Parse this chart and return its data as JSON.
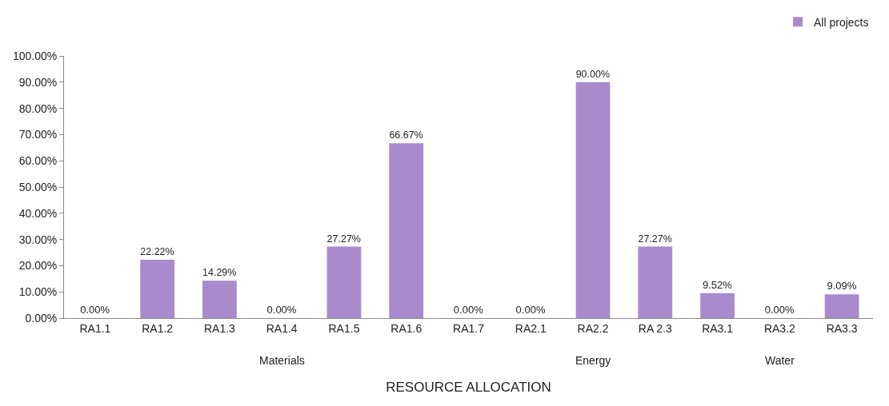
{
  "chart_data": {
    "type": "bar",
    "xlabel": "RESOURCE ALLOCATION",
    "categories": [
      "RA1.1",
      "RA1.2",
      "RA1.3",
      "RA1.4",
      "RA1.5",
      "RA1.6",
      "RA1.7",
      "RA2.1",
      "RA2.2",
      "RA 2.3",
      "RA3.1",
      "RA3.2",
      "RA3.3"
    ],
    "series": [
      {
        "name": "All projects",
        "color": "#a88bcc",
        "values": [
          0,
          22.22,
          14.29,
          0,
          27.27,
          66.67,
          0,
          0,
          90,
          27.27,
          9.52,
          0,
          9.09
        ],
        "value_labels": [
          "0.00%",
          "22.22%",
          "14.29%",
          "0.00%",
          "27.27%",
          "66.67%",
          "0.00%",
          "0.00%",
          "90.00%",
          "27.27%",
          "9.52%",
          "0.00%",
          "9.09%"
        ]
      }
    ],
    "ylim": [
      0,
      100
    ],
    "yticks": [
      {
        "value": 0,
        "label": "0.00%"
      },
      {
        "value": 10,
        "label": "10.00%"
      },
      {
        "value": 20,
        "label": "20.00%"
      },
      {
        "value": 30,
        "label": "30.00%"
      },
      {
        "value": 40,
        "label": "40.00%"
      },
      {
        "value": 50,
        "label": "50.00%"
      },
      {
        "value": 60,
        "label": "60.00%"
      },
      {
        "value": 70,
        "label": "70.00%"
      },
      {
        "value": 80,
        "label": "80.00%"
      },
      {
        "value": 90,
        "label": "90.00%"
      },
      {
        "value": 100,
        "label": "100.00%"
      }
    ],
    "annotations": [
      "Materials",
      "Energy",
      "Water"
    ],
    "grid": false,
    "legend": "top right"
  }
}
